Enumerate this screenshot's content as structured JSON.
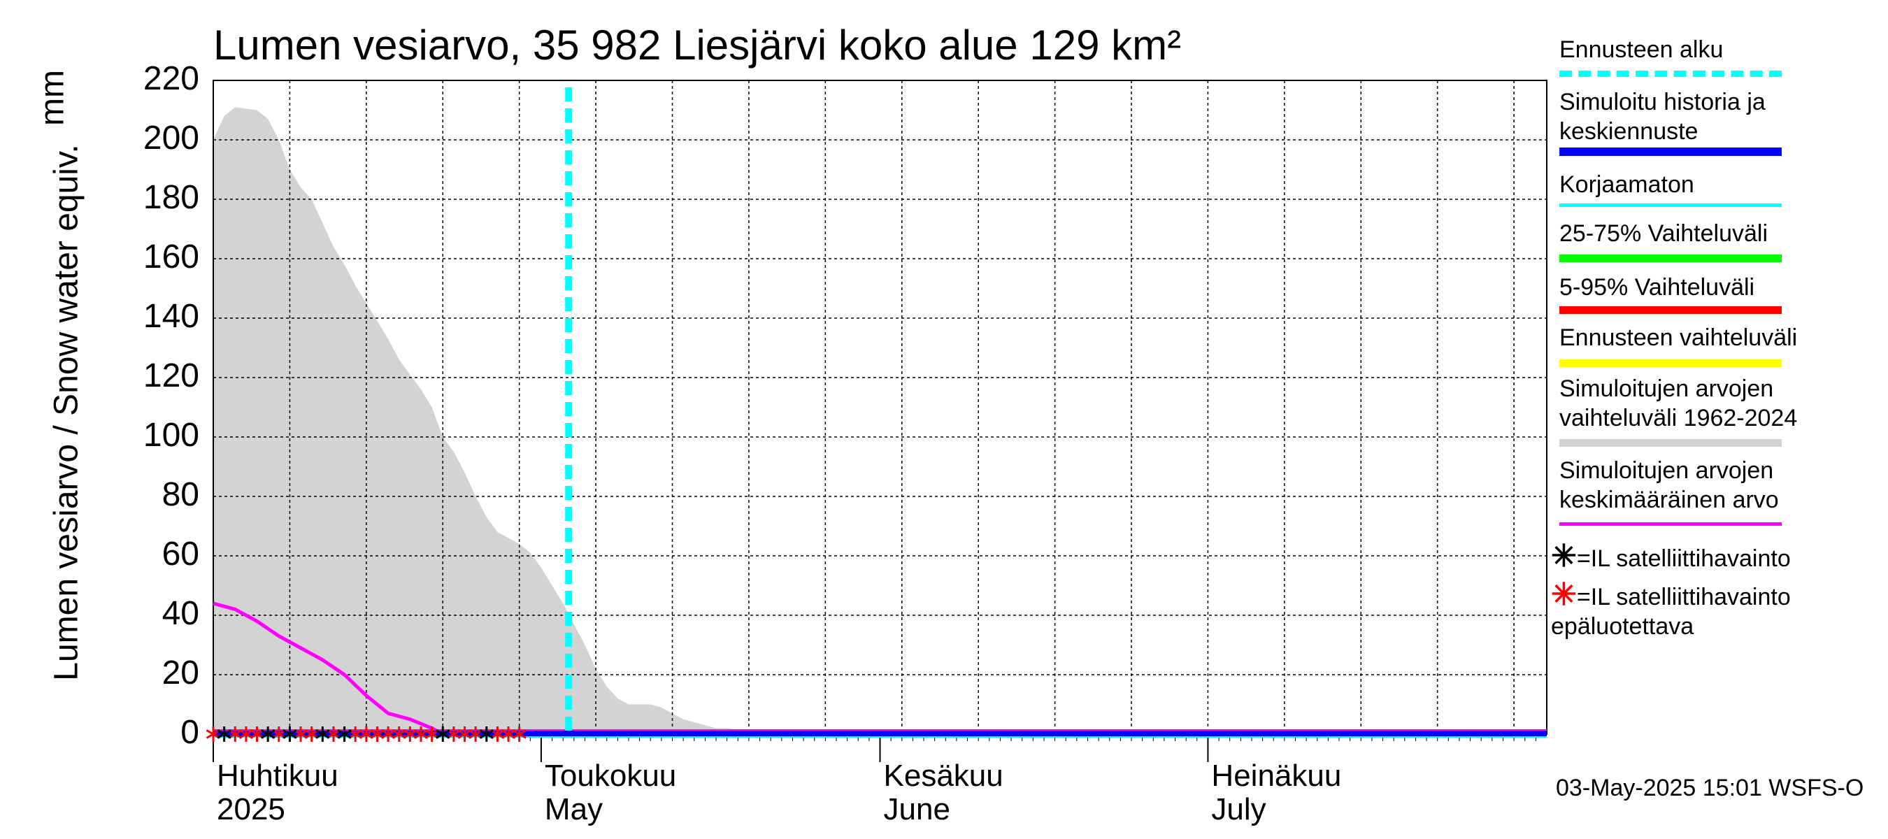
{
  "chart_data": {
    "type": "area",
    "title": "Lumen vesiarvo, 35 982 Liesjärvi koko alue 129 km²",
    "ylabel": "Lumen vesiarvo / Snow water equiv.",
    "yunit": "mm",
    "ylim": [
      0,
      220
    ],
    "yticks": [
      0,
      20,
      40,
      60,
      80,
      100,
      120,
      140,
      160,
      180,
      200,
      220
    ],
    "xlim": [
      "2025-04-01",
      "2025-07-31"
    ],
    "grid": true,
    "x_months": [
      {
        "line1": "Huhtikuu",
        "line2": "2025",
        "date": "2025-04-01"
      },
      {
        "line1": "Toukokuu",
        "line2": "May",
        "date": "2025-05-01"
      },
      {
        "line1": "Kesäkuu",
        "line2": "June",
        "date": "2025-06-01"
      },
      {
        "line1": "Heinäkuu",
        "line2": "July",
        "date": "2025-07-01"
      }
    ],
    "forecast_start": "2025-05-03",
    "series": [
      {
        "name": "Simuloitujen arvojen vaihteluväli 1962-2024",
        "type": "area",
        "color": "#d3d3d3",
        "x": [
          "2025-04-01",
          "2025-04-02",
          "2025-04-03",
          "2025-04-05",
          "2025-04-06",
          "2025-04-07",
          "2025-04-08",
          "2025-04-09",
          "2025-04-10",
          "2025-04-11",
          "2025-04-12",
          "2025-04-13",
          "2025-04-14",
          "2025-04-15",
          "2025-04-16",
          "2025-04-17",
          "2025-04-18",
          "2025-04-19",
          "2025-04-20",
          "2025-04-21",
          "2025-04-22",
          "2025-04-23",
          "2025-04-24",
          "2025-04-25",
          "2025-04-26",
          "2025-04-27",
          "2025-04-28",
          "2025-04-29",
          "2025-04-30",
          "2025-05-01",
          "2025-05-02",
          "2025-05-03",
          "2025-05-04",
          "2025-05-05",
          "2025-05-06",
          "2025-05-07",
          "2025-05-08",
          "2025-05-09",
          "2025-05-10",
          "2025-05-11",
          "2025-05-12",
          "2025-05-13",
          "2025-05-14",
          "2025-05-15",
          "2025-05-16",
          "2025-05-17",
          "2025-05-18",
          "2025-05-20",
          "2025-05-25",
          "2025-05-31",
          "2025-06-01",
          "2025-07-31"
        ],
        "upper": [
          200,
          208,
          211,
          210,
          207,
          200,
          190,
          184,
          180,
          172,
          164,
          158,
          151,
          145,
          139,
          133,
          126,
          121,
          116,
          110,
          100,
          95,
          88,
          80,
          73,
          68,
          66,
          64,
          61,
          56,
          50,
          44,
          37,
          30,
          22,
          16,
          12,
          10,
          10,
          10,
          9,
          7,
          5,
          4,
          3,
          2,
          2,
          1,
          0,
          0,
          0,
          0
        ],
        "lower": [
          0,
          0,
          0,
          0,
          0,
          0,
          0,
          0,
          0,
          0,
          0,
          0,
          0,
          0,
          0,
          0,
          0,
          0,
          0,
          0,
          0,
          0,
          0,
          0,
          0,
          0,
          0,
          0,
          0,
          0,
          0,
          0,
          0,
          0,
          0,
          0,
          0,
          0,
          0,
          0,
          0,
          0,
          0,
          0,
          0,
          0,
          0,
          0,
          0,
          0,
          0,
          0
        ]
      },
      {
        "name": "Simuloitujen arvojen keskimääräinen arvo",
        "type": "line",
        "color": "#ff00ff",
        "x": [
          "2025-04-01",
          "2025-04-03",
          "2025-04-05",
          "2025-04-07",
          "2025-04-09",
          "2025-04-11",
          "2025-04-13",
          "2025-04-15",
          "2025-04-17",
          "2025-04-19",
          "2025-04-21",
          "2025-04-22",
          "2025-04-24",
          "2025-04-26"
        ],
        "values": [
          44,
          42,
          38,
          33,
          29,
          25,
          20,
          13,
          7,
          5,
          2,
          0,
          0,
          0
        ]
      },
      {
        "name": "Simuloitu historia ja keskiennuste",
        "type": "line",
        "color": "#0000ff",
        "x": [
          "2025-04-01",
          "2025-07-31"
        ],
        "values": [
          0,
          0
        ]
      },
      {
        "name": "Korjaamaton",
        "type": "line",
        "color": "#00ffff",
        "x": [
          "2025-04-01",
          "2025-07-31"
        ],
        "values": [
          0,
          0
        ]
      },
      {
        "name": "=IL satelliittihavainto",
        "type": "scatter",
        "color": "#000000",
        "x": [
          "2025-04-02",
          "2025-04-06",
          "2025-04-08",
          "2025-04-11",
          "2025-04-13",
          "2025-04-22",
          "2025-04-26"
        ],
        "values": [
          0,
          0,
          0,
          0,
          0,
          0,
          0
        ]
      },
      {
        "name": "=IL satelliittihavainto epäluotettava",
        "type": "scatter",
        "color": "#ff0000",
        "x": [
          "2025-04-01",
          "2025-04-03",
          "2025-04-04",
          "2025-04-05",
          "2025-04-07",
          "2025-04-09",
          "2025-04-10",
          "2025-04-12",
          "2025-04-14",
          "2025-04-15",
          "2025-04-16",
          "2025-04-17",
          "2025-04-18",
          "2025-04-19",
          "2025-04-20",
          "2025-04-21",
          "2025-04-23",
          "2025-04-24",
          "2025-04-25",
          "2025-04-27",
          "2025-04-28",
          "2025-04-29"
        ],
        "values": [
          0,
          0,
          0,
          0,
          0,
          0,
          0,
          0,
          0,
          0,
          0,
          0,
          0,
          0,
          0,
          0,
          0,
          0,
          0,
          0,
          0,
          0
        ]
      }
    ],
    "legend": {
      "placement": "right",
      "items": [
        {
          "lines": [
            "Ennusteen alku"
          ],
          "color": "#00ffff",
          "style": "dashed"
        },
        {
          "lines": [
            "Simuloitu historia ja",
            "keskiennuste"
          ],
          "color": "#0000ff",
          "style": "solid"
        },
        {
          "lines": [
            "Korjaamaton"
          ],
          "color": "#00ffff",
          "style": "solid"
        },
        {
          "lines": [
            "25-75% Vaihteluväli"
          ],
          "color": "#00ff00",
          "style": "solid"
        },
        {
          "lines": [
            "5-95% Vaihteluväli"
          ],
          "color": "#ff0000",
          "style": "solid"
        },
        {
          "lines": [
            "Ennusteen vaihteluväli"
          ],
          "color": "#ffff00",
          "style": "solid"
        },
        {
          "lines": [
            "Simuloitujen arvojen",
            "vaihteluväli 1962-2024"
          ],
          "color": "#d3d3d3",
          "style": "solid"
        },
        {
          "lines": [
            "Simuloitujen arvojen",
            "keskimääräinen arvo"
          ],
          "color": "#ff00ff",
          "style": "solid"
        },
        {
          "lines": [
            "=IL satelliittihavainto"
          ],
          "color": "#000000",
          "style": "marker"
        },
        {
          "lines": [
            "=IL satelliittihavainto",
            "epäluotettava"
          ],
          "color": "#ff0000",
          "style": "marker"
        }
      ]
    }
  },
  "footer": {
    "timestamp": "03-May-2025 15:01 WSFS-O"
  }
}
